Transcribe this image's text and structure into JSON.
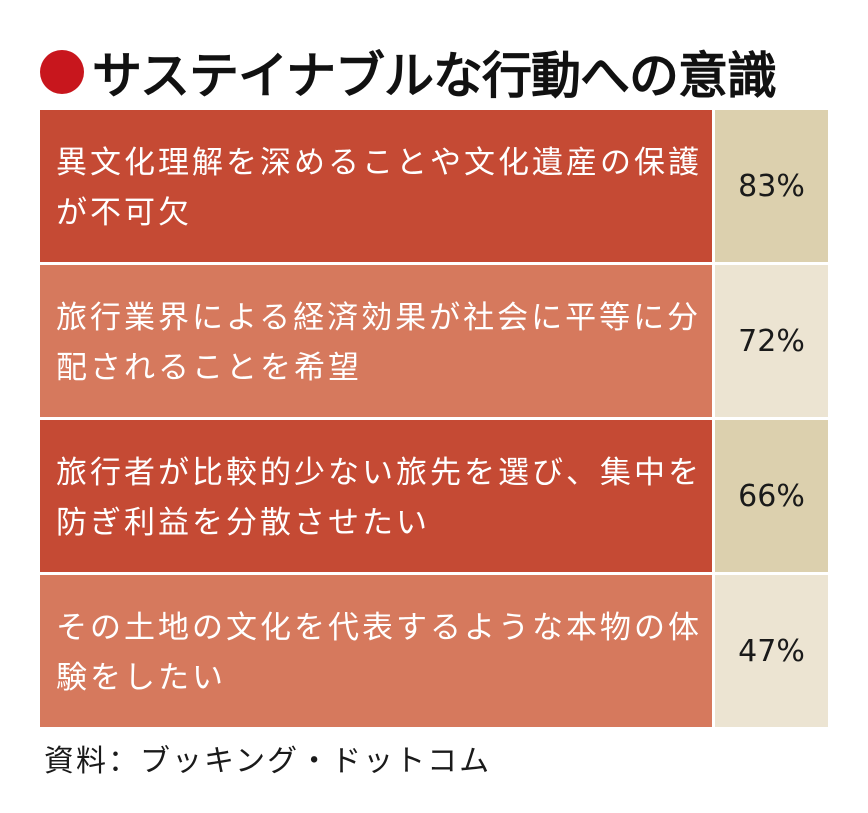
{
  "title": "サステイナブルな行動への意識",
  "source": "資料：ブッキング・ドットコム",
  "colors": {
    "title_dot": "#c8161d",
    "row_dark": "#c54a34",
    "row_light": "#d6795d",
    "value_dark": "#dcd0ae",
    "value_light": "#ece4d2"
  },
  "chart_data": {
    "type": "table",
    "rows": [
      {
        "label": "異文化理解を深めることや文化遺産の保護が不可欠",
        "value": 83,
        "display": "83%"
      },
      {
        "label": "旅行業界による経済効果が社会に平等に分配されることを希望",
        "value": 72,
        "display": "72%"
      },
      {
        "label": "旅行者が比較的少ない旅先を選び、集中を防ぎ利益を分散させたい",
        "value": 66,
        "display": "66%"
      },
      {
        "label": "その土地の文化を代表するような本物の体験をしたい",
        "value": 47,
        "display": "47%"
      }
    ],
    "unit": "%"
  }
}
